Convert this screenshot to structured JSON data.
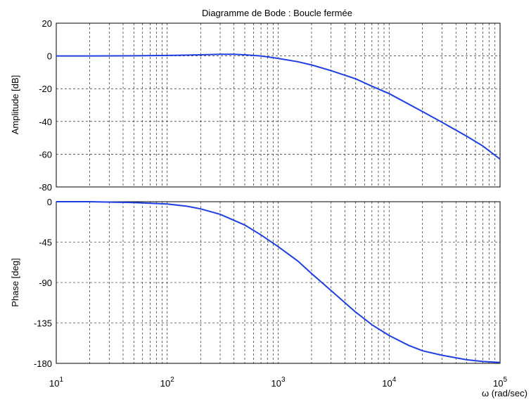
{
  "chart_data": [
    {
      "type": "line",
      "title": "Diagramme de Bode : Boucle fermée",
      "ylabel": "Amplitude [dB]",
      "xscale": "log",
      "xlim": [
        10,
        100000
      ],
      "ylim": [
        -80,
        20
      ],
      "yticks": [
        "20",
        "0",
        "-20",
        "-40",
        "-60",
        "-80"
      ],
      "grid": true,
      "series": [
        {
          "color": "#1f3fe0",
          "x": [
            10,
            20,
            50,
            100,
            200,
            300,
            400,
            500,
            700,
            1000,
            1500,
            2000,
            3000,
            5000,
            7000,
            10000,
            20000,
            30000,
            50000,
            70000,
            100000
          ],
          "y": [
            0,
            0,
            0.1,
            0.3,
            0.7,
            1.0,
            1.0,
            0.7,
            0,
            -1.5,
            -3.5,
            -5.5,
            -9,
            -14,
            -18.5,
            -23,
            -34,
            -40.5,
            -49,
            -55,
            -63
          ]
        }
      ]
    },
    {
      "type": "line",
      "ylabel": "Phase [deg]",
      "xlabel": "ω (rad/sec)",
      "xscale": "log",
      "xlim": [
        10,
        100000
      ],
      "ylim": [
        -180,
        0
      ],
      "yticks": [
        "0",
        "-45",
        "-90",
        "-135",
        "-180"
      ],
      "xticks": [
        {
          "base": "10",
          "exp": "1"
        },
        {
          "base": "10",
          "exp": "2"
        },
        {
          "base": "10",
          "exp": "3"
        },
        {
          "base": "10",
          "exp": "4"
        },
        {
          "base": "10",
          "exp": "5"
        }
      ],
      "grid": true,
      "series": [
        {
          "color": "#1f3fe0",
          "x": [
            10,
            20,
            50,
            100,
            150,
            200,
            300,
            500,
            700,
            1000,
            1500,
            2000,
            3000,
            5000,
            7000,
            10000,
            15000,
            20000,
            30000,
            50000,
            70000,
            100000
          ],
          "y": [
            0,
            0,
            -1,
            -2.5,
            -5,
            -8,
            -14,
            -26,
            -37,
            -50,
            -66,
            -80,
            -99,
            -123,
            -137,
            -149,
            -160,
            -166,
            -171,
            -176,
            -178,
            -179
          ]
        }
      ]
    }
  ]
}
